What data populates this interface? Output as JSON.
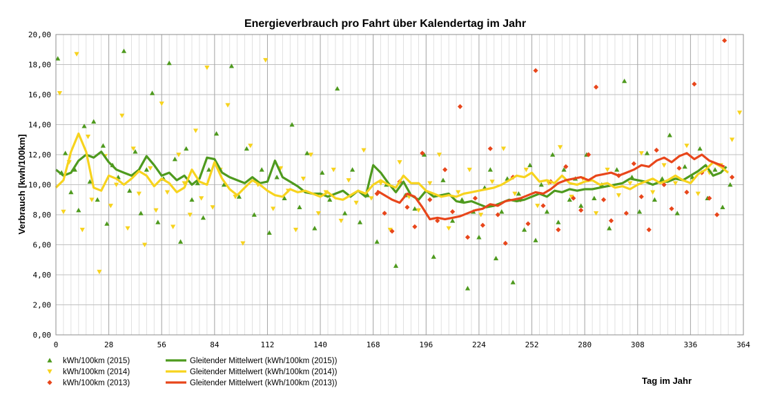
{
  "chart_data": {
    "type": "scatter",
    "title": "Energieverbrauch pro Fahrt über Kalendertag im Jahr",
    "xlabel": "Tag im Jahr",
    "ylabel": "Verbrauch [kwh/100km]",
    "xlim": [
      0,
      364
    ],
    "ylim": [
      0,
      20
    ],
    "x_ticks": [
      0,
      28,
      56,
      84,
      112,
      140,
      168,
      196,
      224,
      252,
      280,
      308,
      336,
      364
    ],
    "y_ticks": [
      "0,00",
      "2,00",
      "4,00",
      "6,00",
      "8,00",
      "10,00",
      "12,00",
      "14,00",
      "16,00",
      "18,00",
      "20,00"
    ],
    "grid": true,
    "legend_position": "bottom-left",
    "colors": {
      "y2015": "#4e9a1e",
      "y2014": "#f7d31e",
      "y2013": "#e8461b"
    },
    "series": [
      {
        "name": "kWh/100km (2015)",
        "kind": "scatter",
        "marker": "triangle-up",
        "color": "#4e9a1e",
        "x": [
          1,
          3,
          5,
          8,
          10,
          12,
          15,
          18,
          20,
          22,
          25,
          27,
          30,
          33,
          36,
          39,
          42,
          45,
          48,
          51,
          54,
          57,
          60,
          63,
          66,
          69,
          72,
          75,
          78,
          81,
          85,
          89,
          93,
          97,
          101,
          105,
          109,
          113,
          117,
          121,
          125,
          129,
          133,
          137,
          141,
          145,
          149,
          153,
          157,
          161,
          165,
          170,
          175,
          180,
          185,
          190,
          195,
          200,
          205,
          210,
          215,
          218,
          221,
          224,
          227,
          230,
          233,
          236,
          239,
          242,
          245,
          248,
          251,
          254,
          257,
          260,
          263,
          266,
          269,
          272,
          275,
          278,
          281,
          285,
          289,
          293,
          297,
          301,
          305,
          309,
          313,
          317,
          321,
          325,
          329,
          333,
          337,
          341,
          345,
          349,
          353,
          357
        ],
        "y": [
          18.4,
          10.8,
          12.1,
          9.5,
          11.0,
          8.3,
          13.9,
          10.2,
          14.2,
          9.0,
          12.6,
          7.4,
          11.3,
          10.5,
          18.9,
          9.6,
          12.2,
          8.1,
          11.0,
          16.1,
          7.5,
          10.4,
          18.1,
          11.7,
          6.2,
          12.4,
          9.0,
          10.1,
          7.8,
          11.0,
          13.4,
          10.0,
          17.9,
          9.2,
          12.4,
          8.0,
          11.0,
          6.8,
          10.5,
          9.1,
          14.0,
          8.5,
          12.1,
          7.1,
          10.8,
          9.0,
          16.4,
          8.1,
          11.0,
          7.5,
          9.3,
          6.2,
          10.0,
          4.6,
          9.3,
          8.4,
          12.0,
          5.2,
          10.3,
          7.6,
          9.0,
          3.1,
          8.2,
          6.5,
          9.8,
          11.0,
          5.1,
          8.2,
          10.4,
          3.5,
          9.4,
          7.0,
          11.3,
          6.3,
          10.0,
          8.2,
          12.0,
          7.5,
          11.0,
          9.0,
          10.4,
          8.6,
          12.0,
          9.1,
          10.0,
          7.1,
          11.0,
          16.9,
          10.5,
          8.2,
          12.1,
          9.0,
          10.4,
          13.3,
          8.1,
          11.2,
          10.5,
          12.4,
          9.1,
          11.0,
          8.5,
          10.0
        ]
      },
      {
        "name": "kWh/100km (2014)",
        "kind": "scatter",
        "marker": "triangle-down",
        "color": "#f7d31e",
        "x": [
          2,
          4,
          7,
          11,
          14,
          17,
          19,
          23,
          26,
          29,
          32,
          35,
          38,
          41,
          44,
          47,
          50,
          53,
          56,
          59,
          62,
          65,
          68,
          71,
          74,
          77,
          80,
          83,
          87,
          91,
          95,
          99,
          103,
          107,
          111,
          115,
          119,
          123,
          127,
          131,
          135,
          139,
          143,
          147,
          151,
          155,
          159,
          163,
          167,
          172,
          177,
          182,
          187,
          192,
          198,
          203,
          208,
          213,
          219,
          225,
          231,
          237,
          243,
          249,
          255,
          261,
          267,
          273,
          279,
          286,
          292,
          298,
          304,
          310,
          316,
          322,
          328,
          334,
          340,
          346,
          352,
          358,
          362
        ],
        "y": [
          16.1,
          8.2,
          11.5,
          18.7,
          7.0,
          13.2,
          9.0,
          4.2,
          11.9,
          8.6,
          10.0,
          14.6,
          7.1,
          12.4,
          9.4,
          6.0,
          11.1,
          8.3,
          15.4,
          9.5,
          7.2,
          12.0,
          10.1,
          8.0,
          13.6,
          9.1,
          17.8,
          8.5,
          11.0,
          15.3,
          9.2,
          6.1,
          12.6,
          10.0,
          18.3,
          8.4,
          11.1,
          9.6,
          7.0,
          10.4,
          12.0,
          8.1,
          9.5,
          11.0,
          7.6,
          10.3,
          8.8,
          12.3,
          9.1,
          10.1,
          7.0,
          11.5,
          9.2,
          8.3,
          10.1,
          12.0,
          7.1,
          9.5,
          11.0,
          8.0,
          10.2,
          12.4,
          9.4,
          11.0,
          8.6,
          10.1,
          12.5,
          9.2,
          10.4,
          8.1,
          11.0,
          9.3,
          10.1,
          12.1,
          9.5,
          11.3,
          10.1,
          12.6,
          9.4,
          10.8,
          11.3,
          13.0,
          14.8
        ]
      },
      {
        "name": "kWh/100km (2013)",
        "kind": "scatter",
        "marker": "diamond",
        "color": "#e8461b",
        "x": [
          170,
          174,
          178,
          182,
          186,
          190,
          194,
          198,
          202,
          206,
          210,
          214,
          218,
          222,
          226,
          230,
          234,
          238,
          242,
          246,
          250,
          254,
          258,
          262,
          266,
          270,
          274,
          278,
          282,
          286,
          290,
          294,
          298,
          302,
          306,
          310,
          314,
          318,
          322,
          326,
          330,
          334,
          338,
          342,
          346,
          350,
          354,
          358
        ],
        "y": [
          9.4,
          8.1,
          6.9,
          10.2,
          8.5,
          7.2,
          12.1,
          9.0,
          7.6,
          11.0,
          8.2,
          15.2,
          6.5,
          9.1,
          7.3,
          12.4,
          8.0,
          6.1,
          10.5,
          9.0,
          7.4,
          17.6,
          8.6,
          10.2,
          7.0,
          11.2,
          9.1,
          8.3,
          12.0,
          16.5,
          9.0,
          7.6,
          10.6,
          8.1,
          11.4,
          9.2,
          7.0,
          12.3,
          10.0,
          8.4,
          11.1,
          9.5,
          16.7,
          10.8,
          9.1,
          8.0,
          19.6,
          10.5
        ]
      },
      {
        "name": "Gleitender Mittelwert (kWh/100km (2015))",
        "kind": "line",
        "color": "#4e9a1e",
        "x": [
          0,
          4,
          8,
          12,
          16,
          20,
          24,
          28,
          32,
          36,
          40,
          44,
          48,
          52,
          56,
          60,
          64,
          68,
          72,
          76,
          80,
          84,
          88,
          92,
          96,
          100,
          104,
          108,
          112,
          116,
          120,
          124,
          128,
          132,
          136,
          140,
          144,
          148,
          152,
          156,
          160,
          164,
          168,
          172,
          176,
          180,
          184,
          188,
          192,
          196,
          200,
          204,
          208,
          212,
          216,
          220,
          224,
          228,
          232,
          236,
          240,
          244,
          248,
          252,
          256,
          260,
          264,
          268,
          272,
          276,
          280,
          284,
          288,
          292,
          296,
          300,
          304,
          308,
          312,
          316,
          320,
          324,
          328,
          332,
          336,
          340,
          344,
          348,
          352,
          355
        ],
        "y": [
          11.0,
          10.6,
          10.8,
          11.6,
          12.0,
          11.8,
          12.2,
          11.5,
          11.0,
          10.8,
          10.6,
          11.0,
          11.9,
          11.3,
          10.6,
          10.8,
          10.3,
          10.6,
          10.0,
          10.4,
          11.8,
          11.7,
          10.8,
          10.5,
          10.3,
          10.1,
          10.5,
          10.1,
          10.2,
          11.6,
          10.5,
          10.2,
          9.9,
          9.5,
          9.4,
          9.4,
          9.2,
          9.4,
          9.6,
          9.2,
          9.6,
          9.2,
          11.3,
          10.8,
          10.1,
          9.5,
          10.2,
          9.3,
          9.0,
          9.6,
          9.2,
          9.3,
          9.4,
          8.9,
          8.8,
          8.9,
          8.7,
          8.5,
          8.6,
          8.8,
          9.0,
          8.9,
          9.0,
          9.2,
          9.4,
          9.2,
          9.6,
          9.5,
          9.7,
          9.6,
          9.7,
          9.7,
          9.8,
          9.9,
          10.0,
          10.1,
          10.4,
          10.3,
          10.2,
          10.0,
          10.2,
          10.2,
          10.4,
          10.3,
          10.6,
          10.9,
          11.3,
          10.6,
          10.8,
          11.2
        ]
      },
      {
        "name": "Gleitender Mittelwert (kWh/100km (2014))",
        "kind": "line",
        "color": "#f7d31e",
        "x": [
          0,
          4,
          8,
          12,
          16,
          20,
          24,
          28,
          32,
          36,
          40,
          44,
          48,
          52,
          56,
          60,
          64,
          68,
          72,
          76,
          80,
          84,
          88,
          92,
          96,
          100,
          104,
          108,
          112,
          116,
          120,
          124,
          128,
          132,
          136,
          140,
          144,
          148,
          152,
          156,
          160,
          164,
          168,
          172,
          176,
          180,
          184,
          188,
          192,
          196,
          200,
          204,
          208,
          212,
          216,
          220,
          224,
          228,
          232,
          236,
          240,
          244,
          248,
          252,
          256,
          260,
          264,
          268,
          272,
          276,
          280,
          284,
          288,
          292,
          296,
          300,
          304,
          308,
          312,
          316,
          320,
          324,
          328,
          332,
          336,
          340,
          344,
          348,
          352,
          356
        ],
        "y": [
          9.8,
          10.3,
          12.2,
          13.4,
          12.2,
          9.8,
          9.6,
          10.6,
          10.4,
          10.0,
          10.4,
          10.9,
          10.6,
          9.9,
          10.4,
          10.1,
          9.5,
          9.8,
          11.0,
          10.2,
          10.0,
          11.5,
          10.4,
          9.7,
          9.3,
          9.8,
          10.3,
          10.0,
          9.6,
          9.3,
          9.2,
          9.7,
          9.5,
          9.6,
          9.4,
          9.2,
          9.5,
          9.1,
          9.0,
          9.3,
          9.6,
          9.4,
          10.0,
          10.3,
          10.0,
          9.8,
          10.6,
          10.1,
          10.1,
          9.6,
          9.4,
          9.2,
          9.3,
          9.2,
          9.4,
          9.5,
          9.6,
          9.7,
          9.8,
          10.0,
          10.3,
          10.6,
          10.5,
          10.8,
          10.2,
          10.3,
          10.1,
          10.6,
          10.1,
          10.0,
          10.2,
          10.3,
          10.0,
          10.1,
          9.8,
          9.9,
          9.7,
          10.0,
          10.2,
          10.4,
          10.1,
          10.3,
          10.6,
          10.3,
          10.1,
          10.7,
          11.0,
          11.5,
          11.2,
          10.8
        ]
      },
      {
        "name": "Gleitender Mittelwert (kWh/100km (2013))",
        "kind": "line",
        "color": "#e8461b",
        "x": [
          170,
          174,
          178,
          182,
          186,
          190,
          194,
          198,
          202,
          206,
          210,
          214,
          218,
          222,
          226,
          230,
          234,
          238,
          242,
          246,
          250,
          254,
          258,
          262,
          266,
          270,
          274,
          278,
          282,
          286,
          290,
          294,
          298,
          302,
          306,
          310,
          314,
          318,
          322,
          326,
          330,
          334,
          338,
          342,
          346,
          350,
          354
        ],
        "y": [
          9.6,
          9.3,
          9.0,
          8.8,
          9.4,
          9.2,
          8.5,
          7.7,
          7.8,
          7.7,
          7.8,
          7.9,
          8.1,
          8.3,
          8.4,
          8.7,
          8.6,
          8.9,
          9.0,
          9.1,
          9.3,
          9.5,
          9.4,
          9.7,
          10.1,
          10.3,
          10.4,
          10.5,
          10.3,
          10.6,
          10.7,
          10.8,
          10.6,
          10.8,
          11.0,
          11.3,
          11.2,
          11.6,
          11.8,
          11.5,
          11.9,
          12.1,
          11.7,
          12.0,
          11.6,
          11.4,
          11.2
        ]
      }
    ]
  }
}
